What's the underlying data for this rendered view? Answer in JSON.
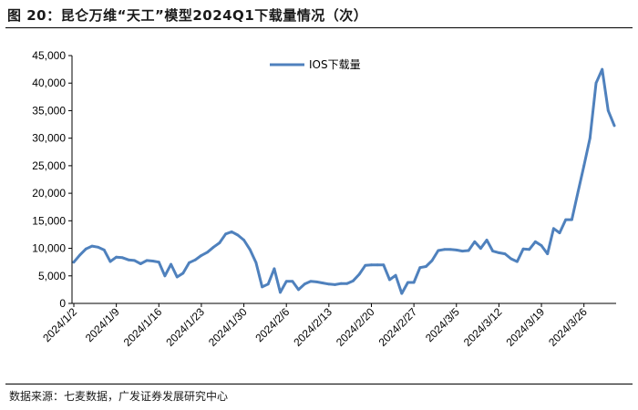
{
  "figure": {
    "title": "图 20：昆仑万维“天工”模型2024Q1下载量情况（次）",
    "source": "数据来源：七麦数据，广发证券发展研究中心"
  },
  "chart_data": {
    "type": "line",
    "title": "",
    "xlabel": "",
    "ylabel": "",
    "ylim": [
      0,
      45000
    ],
    "y_ticks": [
      "0",
      "5,000",
      "10,000",
      "15,000",
      "20,000",
      "25,000",
      "30,000",
      "35,000",
      "40,000",
      "45,000"
    ],
    "x_ticks": [
      "2024/1/2",
      "2024/1/9",
      "2024/1/16",
      "2024/1/23",
      "2024/1/30",
      "2024/2/6",
      "2024/2/13",
      "2024/2/20",
      "2024/2/27",
      "2024/3/5",
      "2024/3/12",
      "2024/3/19",
      "2024/3/26"
    ],
    "grid": false,
    "legend": "top-center",
    "line_color": "#4f81bd",
    "categories": [
      "2024/1/2",
      "2024/1/3",
      "2024/1/4",
      "2024/1/5",
      "2024/1/6",
      "2024/1/7",
      "2024/1/8",
      "2024/1/9",
      "2024/1/10",
      "2024/1/11",
      "2024/1/12",
      "2024/1/13",
      "2024/1/14",
      "2024/1/15",
      "2024/1/16",
      "2024/1/17",
      "2024/1/18",
      "2024/1/19",
      "2024/1/20",
      "2024/1/21",
      "2024/1/22",
      "2024/1/23",
      "2024/1/24",
      "2024/1/25",
      "2024/1/26",
      "2024/1/27",
      "2024/1/28",
      "2024/1/29",
      "2024/1/30",
      "2024/1/31",
      "2024/2/1",
      "2024/2/2",
      "2024/2/3",
      "2024/2/4",
      "2024/2/5",
      "2024/2/6",
      "2024/2/7",
      "2024/2/8",
      "2024/2/9",
      "2024/2/10",
      "2024/2/11",
      "2024/2/12",
      "2024/2/13",
      "2024/2/14",
      "2024/2/15",
      "2024/2/16",
      "2024/2/17",
      "2024/2/18",
      "2024/2/19",
      "2024/2/20",
      "2024/2/21",
      "2024/2/22",
      "2024/2/23",
      "2024/2/24",
      "2024/2/25",
      "2024/2/26",
      "2024/2/27",
      "2024/2/28",
      "2024/2/29",
      "2024/3/1",
      "2024/3/2",
      "2024/3/3",
      "2024/3/4",
      "2024/3/5",
      "2024/3/6",
      "2024/3/7",
      "2024/3/8",
      "2024/3/9",
      "2024/3/10",
      "2024/3/11",
      "2024/3/12",
      "2024/3/13",
      "2024/3/14",
      "2024/3/15",
      "2024/3/16",
      "2024/3/17",
      "2024/3/18",
      "2024/3/19",
      "2024/3/20",
      "2024/3/21",
      "2024/3/22",
      "2024/3/23",
      "2024/3/24",
      "2024/3/25",
      "2024/3/26",
      "2024/3/27",
      "2024/3/28",
      "2024/3/29",
      "2024/3/30",
      "2024/3/31"
    ],
    "series": [
      {
        "name": "IOS下载量",
        "values": [
          7500,
          8800,
          9900,
          10400,
          10200,
          9700,
          7600,
          8400,
          8300,
          7900,
          7800,
          7200,
          7800,
          7700,
          7500,
          5000,
          7100,
          4800,
          5500,
          7400,
          7900,
          8700,
          9300,
          10200,
          11000,
          12600,
          13000,
          12400,
          11500,
          9800,
          7400,
          3000,
          3500,
          6300,
          2000,
          4000,
          4000,
          2500,
          3500,
          4000,
          3900,
          3700,
          3500,
          3400,
          3600,
          3600,
          4100,
          5300,
          6900,
          7000,
          7000,
          7000,
          4300,
          5100,
          1800,
          3800,
          3800,
          6500,
          6700,
          7800,
          9600,
          9800,
          9800,
          9700,
          9500,
          9600,
          11200,
          10000,
          11500,
          9500,
          9200,
          9000,
          8100,
          7600,
          9900,
          9800,
          11200,
          10500,
          9000,
          13600,
          12800,
          15200,
          15200,
          20100,
          25000,
          30000,
          40000,
          42500,
          35000,
          32300
        ]
      }
    ]
  }
}
